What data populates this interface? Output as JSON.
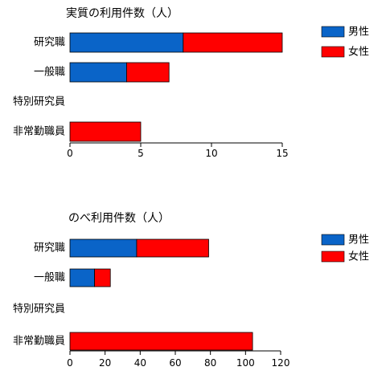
{
  "chart_data": [
    {
      "type": "bar",
      "orientation": "horizontal",
      "stacked": true,
      "title": "実質の利用件数（人）",
      "categories": [
        "研究職",
        "一般職",
        "特別研究員",
        "非常勤職員"
      ],
      "series": [
        {
          "name": "男性",
          "values": [
            8,
            4,
            0,
            0
          ],
          "color": "#0a64c8"
        },
        {
          "name": "女性",
          "values": [
            7,
            3,
            0,
            5
          ],
          "color": "#ff0000"
        }
      ],
      "xlim": [
        0,
        15
      ],
      "xticks": [
        "0",
        "5",
        "10",
        "15"
      ],
      "legend": "top-right",
      "grid": false
    },
    {
      "type": "bar",
      "orientation": "horizontal",
      "stacked": true,
      "title": "のべ利用件数（人）",
      "categories": [
        "研究職",
        "一般職",
        "特別研究員",
        "非常勤職員"
      ],
      "series": [
        {
          "name": "男性",
          "values": [
            38,
            14,
            0,
            0
          ],
          "color": "#0a64c8"
        },
        {
          "name": "女性",
          "values": [
            41,
            9,
            0,
            104
          ],
          "color": "#ff0000"
        }
      ],
      "xlim": [
        0,
        120
      ],
      "xticks": [
        "0",
        "20",
        "40",
        "60",
        "80",
        "100",
        "120"
      ],
      "legend": "top-right",
      "grid": false
    }
  ]
}
